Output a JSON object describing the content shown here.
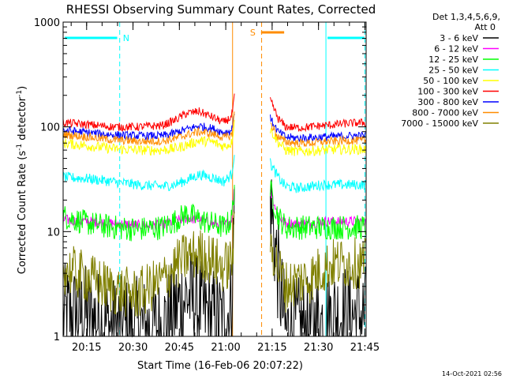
{
  "chart_data": {
    "type": "line",
    "title": "RHESSI Observing Summary Count Rates, Corrected",
    "xlabel": "Start Time (16-Feb-06 20:07:22)",
    "ylabel": "Corrected Count Rate (s^-1 detector^-1)",
    "ylabel_parts": {
      "main": "Corrected Count Rate (s",
      "sup1": "-1",
      "mid": " detector",
      "sup2": "-1",
      "end": ")"
    },
    "yscale": "log",
    "ylim": [
      1,
      1000
    ],
    "xlim_minutes": [
      0,
      98
    ],
    "x_start": "20:07:22",
    "y_ticks": [
      {
        "value": 1,
        "label": "1"
      },
      {
        "value": 10,
        "label": "10"
      },
      {
        "value": 100,
        "label": "100"
      },
      {
        "value": 1000,
        "label": "1000"
      }
    ],
    "x_ticks": [
      {
        "minutes": 7.6,
        "label": "20:15"
      },
      {
        "minutes": 22.6,
        "label": "20:30"
      },
      {
        "minutes": 37.6,
        "label": "20:45"
      },
      {
        "minutes": 52.6,
        "label": "21:00"
      },
      {
        "minutes": 67.6,
        "label": "21:15"
      },
      {
        "minutes": 82.6,
        "label": "21:30"
      },
      {
        "minutes": 97.6,
        "label": "21:45"
      }
    ],
    "legend_header": [
      "Det 1,3,4,5,6,9,",
      "Att 0"
    ],
    "series": [
      {
        "name": "3 - 6 keV",
        "color": "#000000",
        "x": [
          0,
          8,
          16,
          24,
          32,
          36,
          40,
          44,
          48,
          52,
          54.5,
          55.5,
          64,
          67,
          69.5,
          72,
          76,
          80,
          84,
          88,
          92,
          98
        ],
        "y": [
          1.6,
          1.6,
          1.2,
          1.2,
          1.2,
          1.8,
          2.4,
          1.9,
          1.5,
          1.4,
          2.0,
          25,
          null,
          20,
          4,
          1.1,
          1.2,
          1.2,
          1.4,
          1.6,
          1.6,
          1.6
        ]
      },
      {
        "name": "6 - 12 keV",
        "color": "#ff00ff",
        "x": [
          0,
          8,
          16,
          24,
          32,
          36,
          40,
          44,
          48,
          52,
          54.5,
          55.5,
          64,
          67,
          69.5,
          72,
          76,
          80,
          84,
          88,
          92,
          98
        ],
        "y": [
          13,
          12.5,
          12,
          11.5,
          11.5,
          12.5,
          13.5,
          13,
          12,
          11.5,
          13,
          30,
          null,
          25,
          14,
          12,
          12,
          12,
          12.5,
          12.5,
          12.5,
          12.5
        ]
      },
      {
        "name": "12 - 25 keV",
        "color": "#00ff00",
        "x": [
          0,
          8,
          16,
          24,
          32,
          36,
          40,
          44,
          48,
          52,
          54.5,
          55.5,
          64,
          67,
          69.5,
          72,
          76,
          80,
          84,
          88,
          92,
          98
        ],
        "y": [
          14,
          12,
          11,
          10.5,
          11,
          12.5,
          15,
          13,
          12,
          11,
          13,
          30,
          null,
          25,
          14,
          11,
          11,
          11,
          11,
          11,
          11,
          11
        ]
      },
      {
        "name": "25 - 50 keV",
        "color": "#00ffff",
        "x": [
          0,
          8,
          16,
          24,
          32,
          36,
          40,
          44,
          48,
          52,
          54.5,
          55.5,
          64,
          67,
          69.5,
          72,
          76,
          80,
          84,
          88,
          92,
          98
        ],
        "y": [
          33,
          32,
          30,
          28,
          27,
          28,
          31,
          35,
          33,
          30,
          35,
          60,
          null,
          45,
          33,
          27,
          26,
          27,
          28,
          28,
          28,
          28
        ]
      },
      {
        "name": "50 - 100 keV",
        "color": "#ffff00",
        "x": [
          0,
          8,
          16,
          24,
          32,
          36,
          40,
          44,
          48,
          52,
          54.5,
          55.5,
          64,
          67,
          69.5,
          72,
          76,
          80,
          84,
          88,
          92,
          98
        ],
        "y": [
          70,
          66,
          62,
          60,
          60,
          62,
          67,
          74,
          72,
          65,
          70,
          120,
          null,
          95,
          72,
          60,
          58,
          59,
          60,
          61,
          61,
          61
        ]
      },
      {
        "name": "100 - 300 keV",
        "color": "#ff0000",
        "x": [
          0,
          8,
          16,
          24,
          32,
          36,
          40,
          44,
          48,
          52,
          54.5,
          55.5,
          64,
          67,
          69.5,
          72,
          76,
          80,
          84,
          88,
          92,
          98
        ],
        "y": [
          110,
          105,
          100,
          100,
          103,
          115,
          135,
          140,
          125,
          110,
          125,
          200,
          null,
          180,
          120,
          100,
          98,
          100,
          103,
          105,
          108,
          110
        ]
      },
      {
        "name": "300 - 800 keV",
        "color": "#0000ff",
        "x": [
          0,
          8,
          16,
          24,
          32,
          36,
          40,
          44,
          48,
          52,
          54.5,
          55.5,
          64,
          67,
          69.5,
          72,
          76,
          80,
          84,
          88,
          92,
          98
        ],
        "y": [
          93,
          88,
          84,
          82,
          82,
          87,
          95,
          102,
          97,
          88,
          92,
          150,
          null,
          120,
          90,
          80,
          78,
          79,
          80,
          81,
          82,
          82
        ]
      },
      {
        "name": "800 - 7000 keV",
        "color": "#ff8c00",
        "x": [
          0,
          8,
          16,
          24,
          32,
          36,
          40,
          44,
          48,
          52,
          54.5,
          55.5,
          64,
          67,
          69.5,
          72,
          76,
          80,
          84,
          88,
          92,
          98
        ],
        "y": [
          85,
          80,
          75,
          73,
          73,
          77,
          84,
          90,
          86,
          79,
          83,
          140,
          null,
          110,
          80,
          72,
          70,
          70,
          72,
          73,
          74,
          74
        ]
      },
      {
        "name": "7000 - 15000 keV",
        "color": "#808000",
        "x": [
          0,
          8,
          16,
          24,
          32,
          36,
          40,
          44,
          48,
          52,
          54.5,
          55.5,
          64,
          67,
          69.5,
          72,
          76,
          80,
          84,
          88,
          92,
          98
        ],
        "y": [
          4.5,
          3.6,
          2.8,
          2.5,
          3.4,
          4.6,
          5.8,
          6.2,
          5.4,
          4.5,
          5.2,
          10,
          null,
          8,
          4.5,
          3.0,
          3.4,
          3.6,
          4.5,
          5.0,
          5.0,
          5.0
        ]
      }
    ],
    "flags": [
      {
        "label": "N",
        "color": "#00ffff",
        "minutes": 18.3,
        "bars": [
          [
            0,
            18
          ],
          [
            85,
            98
          ]
        ]
      },
      {
        "label": "S",
        "color": "#ff8c00",
        "minutes": 63.5,
        "bars": [
          [
            63.5,
            72
          ]
        ]
      }
    ],
    "vlines": [
      {
        "minutes": 0,
        "color": "#00ffff",
        "style": "solid"
      },
      {
        "minutes": 18.3,
        "color": "#00ffff",
        "style": "dashed"
      },
      {
        "minutes": 54.8,
        "color": "#ff8c00",
        "style": "solid"
      },
      {
        "minutes": 64.2,
        "color": "#ff8c00",
        "style": "dashed"
      },
      {
        "minutes": 85,
        "color": "#00ffff",
        "style": "solid"
      },
      {
        "minutes": 97.6,
        "color": "#00ffff",
        "style": "dashed"
      }
    ],
    "gap_minutes": [
      55.5,
      67
    ]
  },
  "footer": {
    "timestamp": "14-Oct-2021 02:56"
  }
}
